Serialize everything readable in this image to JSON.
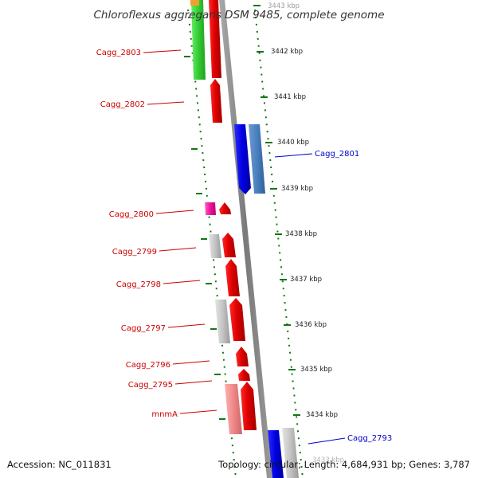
{
  "title": "Chloroflexus aggregans DSM 9485, complete genome",
  "footer": {
    "accession": "Accession: NC_011831",
    "stats": "Topology: circular; Length: 4,684,931 bp; Genes: 3,787"
  },
  "ruler": [
    "3443 kbp",
    "3442 kbp",
    "3441 kbp",
    "3440 kbp",
    "3439 kbp",
    "3438 kbp",
    "3437 kbp",
    "3436 kbp",
    "3435 kbp",
    "3434 kbp",
    "3433 kbp"
  ],
  "genes_left": [
    "Cagg_2803",
    "Cagg_2802",
    "Cagg_2800",
    "Cagg_2799",
    "Cagg_2798",
    "Cagg_2797",
    "Cagg_2796",
    "Cagg_2795",
    "mnmA"
  ],
  "genes_right": [
    "Cagg_2801",
    "Cagg_2793"
  ],
  "colors": {
    "forward_gene": "#ee0000",
    "reverse_gene": "#0000ee",
    "forward_label": "#cc0000",
    "reverse_label": "#0000cc",
    "ticks": "#117711",
    "backbone": "#888888"
  }
}
